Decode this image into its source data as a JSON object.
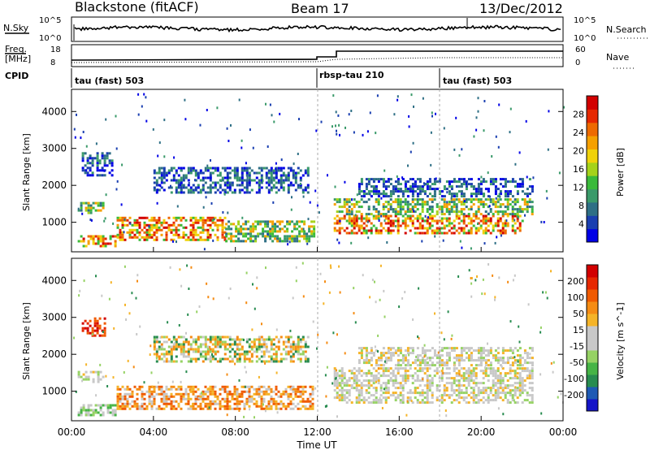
{
  "header": {
    "station": "Blackstone (fitACF)",
    "beam": "Beam 17",
    "date": "13/Dec/2012"
  },
  "summary_panels": {
    "nsky_label": "N.Sky",
    "nsearch_label": "N.Search",
    "noise_ticks_left": [
      "10^5",
      "10^0"
    ],
    "noise_ticks_right": [
      "10^5",
      "10^0"
    ],
    "freq_label_line1": "Freq.",
    "freq_label_line2": "[MHz]",
    "freq_ticks": [
      "18",
      "8"
    ],
    "nave_label": "Nave",
    "nave_ticks": [
      "60",
      "0"
    ],
    "cpid_label": "CPID",
    "cpid_segments": [
      {
        "label": "tau (fast) 503",
        "start_hour": 0.0
      },
      {
        "label": "rbsp-tau 210",
        "start_hour": 12.0
      },
      {
        "label": "tau (fast) 503",
        "start_hour": 18.0
      }
    ]
  },
  "chart_data": [
    {
      "type": "heatmap",
      "title": "",
      "ylabel": "Slant Range [km]",
      "xlim": [
        0,
        24
      ],
      "ylim": [
        200,
        4600
      ],
      "yticks": [
        "1000",
        "2000",
        "3000",
        "4000"
      ],
      "colorbar_label": "Power [dB]",
      "colorbar_ticks": [
        "4",
        "8",
        "12",
        "16",
        "20",
        "24",
        "28"
      ],
      "colorbar_colors": [
        "#0000e6",
        "#1a3fb0",
        "#2e6f85",
        "#3a9a6a",
        "#3aba3a",
        "#a5d21a",
        "#f0d20a",
        "#f5a000",
        "#ee6a00",
        "#e62800",
        "#d20000"
      ],
      "echo_regions": [
        {
          "t_start": 0.3,
          "t_end": 2.2,
          "r_start": 350,
          "r_end": 650,
          "level": "high"
        },
        {
          "t_start": 0.3,
          "t_end": 1.6,
          "r_start": 1250,
          "r_end": 1550,
          "level": "medium"
        },
        {
          "t_start": 2.2,
          "t_end": 7.5,
          "r_start": 500,
          "r_end": 1150,
          "level": "high"
        },
        {
          "t_start": 7.5,
          "t_end": 11.8,
          "r_start": 500,
          "r_end": 1050,
          "level": "medium"
        },
        {
          "t_start": 4.0,
          "t_end": 11.5,
          "r_start": 1800,
          "r_end": 2500,
          "level": "low"
        },
        {
          "t_start": 0.5,
          "t_end": 2.0,
          "r_start": 2300,
          "r_end": 2900,
          "level": "low"
        },
        {
          "t_start": 12.8,
          "t_end": 22.0,
          "r_start": 700,
          "r_end": 1200,
          "level": "high"
        },
        {
          "t_start": 12.8,
          "t_end": 22.5,
          "r_start": 1200,
          "r_end": 1650,
          "level": "medium"
        },
        {
          "t_start": 14.0,
          "t_end": 22.5,
          "r_start": 1700,
          "r_end": 2200,
          "level": "low"
        }
      ]
    },
    {
      "type": "heatmap",
      "title": "",
      "ylabel": "Slant Range [km]",
      "xlabel": "Time UT",
      "xlim": [
        0,
        24
      ],
      "ylim": [
        200,
        4600
      ],
      "xticks": [
        "00:00",
        "04:00",
        "08:00",
        "12:00",
        "16:00",
        "20:00",
        "00:00"
      ],
      "yticks": [
        "1000",
        "2000",
        "3000",
        "4000"
      ],
      "colorbar_label": "Velocity [m s^-1]",
      "colorbar_ticks": [
        "200",
        "100",
        "50",
        "15",
        "-15",
        "-50",
        "-100",
        "-200"
      ],
      "colorbar_colors": [
        "#1414c8",
        "#1e5ab4",
        "#288c50",
        "#46b446",
        "#96d264",
        "#c8c8c8",
        "#c8c8c8",
        "#f5b428",
        "#f58c14",
        "#f05a00",
        "#e62800",
        "#d20000"
      ],
      "echo_regions": [
        {
          "t_start": 0.3,
          "t_end": 2.2,
          "r_start": 350,
          "r_end": 650,
          "level": "green"
        },
        {
          "t_start": 0.3,
          "t_end": 1.6,
          "r_start": 1250,
          "r_end": 1550,
          "level": "grey"
        },
        {
          "t_start": 2.2,
          "t_end": 11.8,
          "r_start": 500,
          "r_end": 1150,
          "level": "orange"
        },
        {
          "t_start": 4.0,
          "t_end": 11.5,
          "r_start": 1800,
          "r_end": 2500,
          "level": "mixed"
        },
        {
          "t_start": 0.5,
          "t_end": 1.6,
          "r_start": 2500,
          "r_end": 3000,
          "level": "red"
        },
        {
          "t_start": 12.8,
          "t_end": 22.5,
          "r_start": 700,
          "r_end": 1650,
          "level": "grey"
        },
        {
          "t_start": 14.0,
          "t_end": 22.5,
          "r_start": 1700,
          "r_end": 2200,
          "level": "grey"
        }
      ]
    }
  ],
  "axis": {
    "xlabel": "Time UT"
  }
}
